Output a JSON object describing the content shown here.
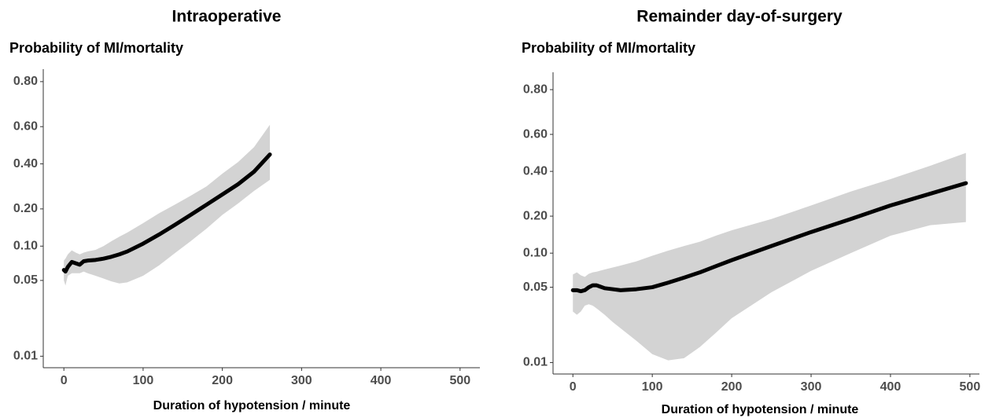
{
  "chart_data": [
    {
      "type": "line",
      "title": "Intraoperative",
      "ylabel": "Probability of MI/mortality",
      "xlabel": "Duration of hypotension / minute",
      "yscale": "logit",
      "color": "#000000",
      "band_color": "#d3d3d3",
      "xlim": [
        -26,
        525
      ],
      "xticks": [
        0,
        100,
        200,
        300,
        400,
        500
      ],
      "ylim": [
        0.0078,
        0.84
      ],
      "yticks": [
        0.01,
        0.05,
        {
          "value": 0.1,
          "label": "0.10"
        },
        {
          "value": 0.2,
          "label": "0.20"
        },
        {
          "value": 0.4,
          "label": "0.40"
        },
        {
          "value": 0.6,
          "label": "0.60"
        },
        {
          "value": 0.8,
          "label": "0.80"
        }
      ],
      "x": [
        0,
        2,
        5,
        10,
        15,
        20,
        25,
        30,
        40,
        50,
        60,
        70,
        80,
        100,
        120,
        140,
        160,
        180,
        200,
        220,
        240,
        260
      ],
      "values": [
        0.062,
        0.06,
        0.066,
        0.073,
        0.071,
        0.069,
        0.074,
        0.075,
        0.076,
        0.078,
        0.081,
        0.085,
        0.09,
        0.105,
        0.125,
        0.15,
        0.18,
        0.215,
        0.255,
        0.3,
        0.36,
        0.45
      ],
      "lower": [
        0.05,
        0.045,
        0.055,
        0.058,
        0.058,
        0.058,
        0.06,
        0.058,
        0.055,
        0.052,
        0.049,
        0.047,
        0.048,
        0.055,
        0.068,
        0.087,
        0.11,
        0.14,
        0.18,
        0.22,
        0.27,
        0.32
      ],
      "upper": [
        0.075,
        0.078,
        0.085,
        0.092,
        0.088,
        0.085,
        0.088,
        0.09,
        0.093,
        0.1,
        0.11,
        0.12,
        0.13,
        0.155,
        0.185,
        0.215,
        0.25,
        0.29,
        0.35,
        0.41,
        0.49,
        0.61
      ]
    },
    {
      "type": "line",
      "title": "Remainder day-of-surgery",
      "ylabel": "Probability of MI/mortality",
      "xlabel": "Duration of hypotension / minute",
      "yscale": "logit",
      "color": "#000000",
      "band_color": "#d3d3d3",
      "xlim": [
        -25,
        512
      ],
      "xticks": [
        0,
        100,
        200,
        300,
        400,
        500
      ],
      "ylim": [
        0.0078,
        0.854
      ],
      "yticks": [
        0.01,
        0.05,
        {
          "value": 0.1,
          "label": "0.10"
        },
        {
          "value": 0.2,
          "label": "0.20"
        },
        {
          "value": 0.4,
          "label": "0.40"
        },
        {
          "value": 0.6,
          "label": "0.60"
        },
        {
          "value": 0.8,
          "label": "0.80"
        }
      ],
      "x": [
        0,
        5,
        10,
        15,
        20,
        25,
        30,
        40,
        50,
        60,
        80,
        100,
        120,
        140,
        160,
        180,
        200,
        250,
        300,
        350,
        400,
        450,
        495
      ],
      "values": [
        0.047,
        0.047,
        0.046,
        0.047,
        0.05,
        0.052,
        0.052,
        0.049,
        0.048,
        0.047,
        0.048,
        0.05,
        0.055,
        0.061,
        0.068,
        0.077,
        0.087,
        0.115,
        0.15,
        0.19,
        0.24,
        0.29,
        0.34
      ],
      "lower": [
        0.03,
        0.028,
        0.03,
        0.034,
        0.035,
        0.034,
        0.032,
        0.028,
        0.024,
        0.021,
        0.016,
        0.012,
        0.0105,
        0.011,
        0.014,
        0.019,
        0.026,
        0.045,
        0.07,
        0.1,
        0.14,
        0.17,
        0.18
      ],
      "upper": [
        0.065,
        0.068,
        0.064,
        0.062,
        0.066,
        0.068,
        0.069,
        0.072,
        0.075,
        0.078,
        0.085,
        0.095,
        0.105,
        0.115,
        0.125,
        0.14,
        0.155,
        0.19,
        0.24,
        0.3,
        0.36,
        0.43,
        0.5
      ]
    }
  ]
}
